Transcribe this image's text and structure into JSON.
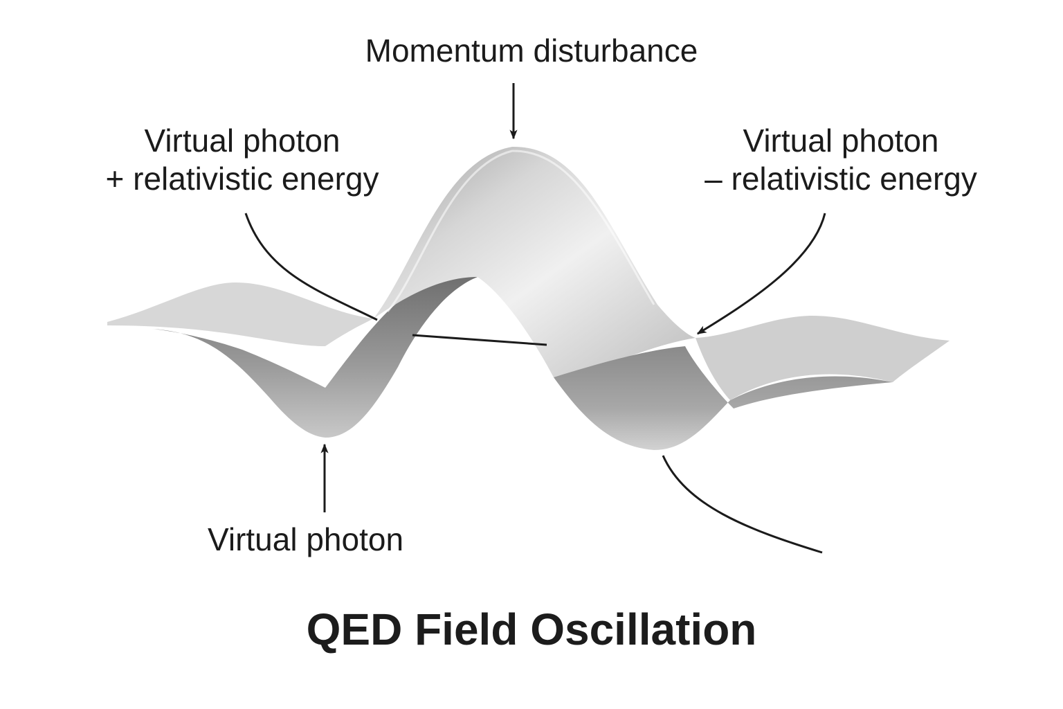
{
  "labels": {
    "top": "Momentum disturbance",
    "left_line1": "Virtual photon",
    "left_line2": "+ relativistic energy",
    "right_line1": "Virtual photon",
    "right_line2": "– relativistic energy",
    "bottom": "Virtual photon"
  },
  "title": "QED Field Oscillation",
  "colors": {
    "surface_light": "#eeeeee",
    "surface_mid": "#bdbdbd",
    "surface_dark": "#7a7a7a",
    "ink": "#1b1b1b"
  }
}
